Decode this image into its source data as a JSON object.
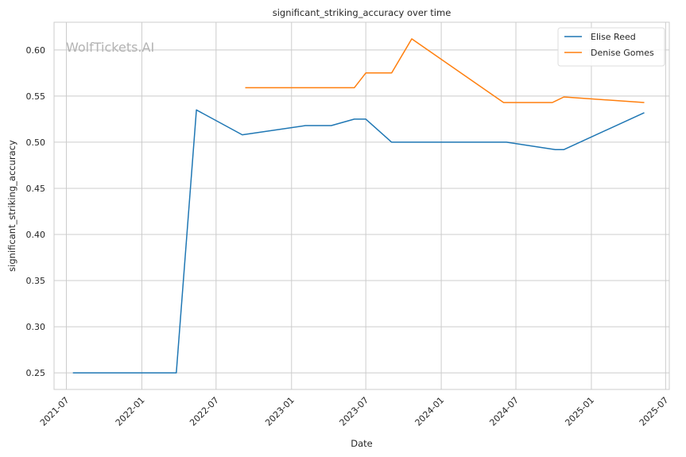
{
  "chart_data": {
    "type": "line",
    "title": "significant_striking_accuracy over time",
    "xlabel": "Date",
    "ylabel": "significant_striking_accuracy",
    "watermark": "WolfTickets.AI",
    "x_range": [
      "2021-06-01",
      "2025-07-10"
    ],
    "ylim": [
      0.232,
      0.63
    ],
    "x_ticks": [
      "2021-07",
      "2022-01",
      "2022-07",
      "2023-01",
      "2023-07",
      "2024-01",
      "2024-07",
      "2025-01",
      "2025-07"
    ],
    "y_ticks": [
      "0.25",
      "0.30",
      "0.35",
      "0.40",
      "0.45",
      "0.50",
      "0.55",
      "0.60"
    ],
    "grid": true,
    "legend_position": "top-right",
    "series": [
      {
        "name": "Elise Reed",
        "color": "#1f77b4",
        "points": [
          {
            "x": "2021-07-17",
            "y": 0.25
          },
          {
            "x": "2022-03-26",
            "y": 0.25
          },
          {
            "x": "2022-05-14",
            "y": 0.535
          },
          {
            "x": "2022-09-03",
            "y": 0.508
          },
          {
            "x": "2023-02-04",
            "y": 0.518
          },
          {
            "x": "2023-04-08",
            "y": 0.518
          },
          {
            "x": "2023-06-03",
            "y": 0.525
          },
          {
            "x": "2023-07-01",
            "y": 0.525
          },
          {
            "x": "2023-09-02",
            "y": 0.5
          },
          {
            "x": "2024-06-08",
            "y": 0.5
          },
          {
            "x": "2024-10-05",
            "y": 0.492
          },
          {
            "x": "2024-10-26",
            "y": 0.492
          },
          {
            "x": "2025-05-10",
            "y": 0.532
          }
        ]
      },
      {
        "name": "Denise Gomes",
        "color": "#ff7f0e",
        "points": [
          {
            "x": "2022-09-10",
            "y": 0.559
          },
          {
            "x": "2023-06-03",
            "y": 0.559
          },
          {
            "x": "2023-07-01",
            "y": 0.575
          },
          {
            "x": "2023-09-02",
            "y": 0.575
          },
          {
            "x": "2023-10-21",
            "y": 0.612
          },
          {
            "x": "2024-06-01",
            "y": 0.543
          },
          {
            "x": "2024-09-28",
            "y": 0.543
          },
          {
            "x": "2024-10-26",
            "y": 0.549
          },
          {
            "x": "2025-05-10",
            "y": 0.543
          }
        ]
      }
    ]
  }
}
